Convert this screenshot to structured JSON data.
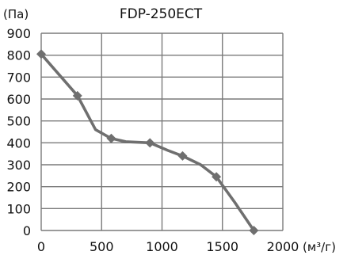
{
  "chart_data": {
    "type": "line",
    "title": "FDP-250ECT",
    "xlabel": "(м³/г)",
    "ylabel": "(Па)",
    "xlim": [
      0,
      2000
    ],
    "ylim": [
      0,
      900
    ],
    "x_ticks": [
      "0",
      "500",
      "1000",
      "1500",
      "2000"
    ],
    "y_ticks": [
      "0",
      "100",
      "200",
      "300",
      "400",
      "500",
      "600",
      "700",
      "800",
      "900"
    ],
    "grid": true,
    "series": [
      {
        "curve": [
          [
            0,
            805
          ],
          [
            150,
            710
          ],
          [
            300,
            615
          ],
          [
            450,
            460
          ],
          [
            580,
            420
          ],
          [
            700,
            405
          ],
          [
            900,
            400
          ],
          [
            1050,
            365
          ],
          [
            1170,
            340
          ],
          [
            1320,
            300
          ],
          [
            1450,
            245
          ],
          [
            1600,
            130
          ],
          [
            1760,
            0
          ]
        ],
        "marker_points": [
          [
            0,
            805
          ],
          [
            300,
            615
          ],
          [
            580,
            420
          ],
          [
            900,
            400
          ],
          [
            1170,
            340
          ],
          [
            1450,
            245
          ],
          [
            1760,
            0
          ]
        ]
      }
    ],
    "colors": {
      "line": "#6f6f6f",
      "grid": "#7a7a7a",
      "text": "#111111"
    }
  }
}
